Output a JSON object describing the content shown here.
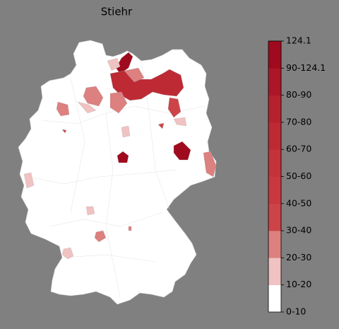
{
  "map": {
    "title": "Stiehr",
    "legend": {
      "labels": [
        "0-10",
        "10-20",
        "20-30",
        "30-40",
        "40-50",
        "50-60",
        "60-70",
        "70-80",
        "80-90",
        "90-124.1",
        "124.1"
      ],
      "colors": [
        "#ffffff",
        "#f0c2c2",
        "#dc8080",
        "#cc4448",
        "#c8383e",
        "#c4333a",
        "#bd2a34",
        "#b6212e",
        "#ac1628",
        "#a00a1e"
      ]
    }
  }
}
